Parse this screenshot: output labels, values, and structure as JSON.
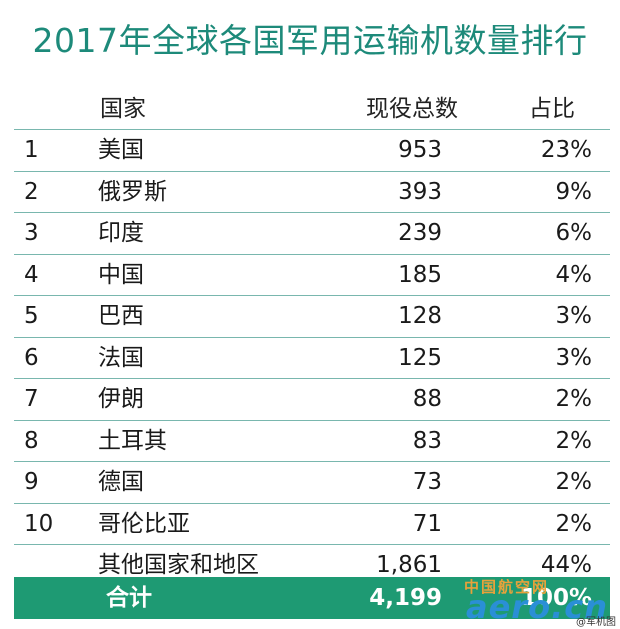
{
  "title": "2017年全球各国军用运输机数量排行",
  "headers": {
    "country": "国家",
    "total": "现役总数",
    "share": "占比"
  },
  "rows": [
    {
      "rank": "1",
      "country": "美国",
      "total": "953",
      "share": "23%"
    },
    {
      "rank": "2",
      "country": "俄罗斯",
      "total": "393",
      "share": "9%"
    },
    {
      "rank": "3",
      "country": "印度",
      "total": "239",
      "share": "6%"
    },
    {
      "rank": "4",
      "country": "中国",
      "total": "185",
      "share": "4%"
    },
    {
      "rank": "5",
      "country": "巴西",
      "total": "128",
      "share": "3%"
    },
    {
      "rank": "6",
      "country": "法国",
      "total": "125",
      "share": "3%"
    },
    {
      "rank": "7",
      "country": "伊朗",
      "total": "88",
      "share": "2%"
    },
    {
      "rank": "8",
      "country": "土耳其",
      "total": "83",
      "share": "2%"
    },
    {
      "rank": "9",
      "country": "德国",
      "total": "73",
      "share": "2%"
    },
    {
      "rank": "10",
      "country": "哥伦比亚",
      "total": "71",
      "share": "2%"
    }
  ],
  "other": {
    "country": "其他国家和地区",
    "total": "1,861",
    "share": "44%"
  },
  "total": {
    "label": "合计",
    "total": "4,199",
    "share": "100%"
  },
  "watermark": {
    "cn": "中国航空网",
    "en": "aero.cn",
    "credit": "@军机图"
  },
  "colors": {
    "title": "#1d8a7a",
    "total_bar": "#1e9a73",
    "rule": "#79b7ae"
  }
}
